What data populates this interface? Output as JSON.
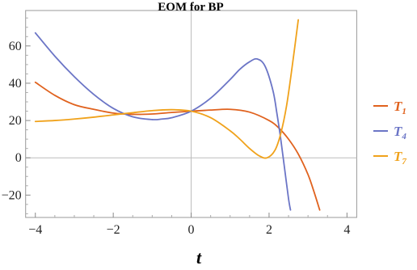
{
  "chart_data": {
    "type": "line",
    "title": "EOM for BP",
    "xlabel": "t",
    "ylabel": "",
    "xlim": [
      -4.25,
      4.25
    ],
    "ylim": [
      -32,
      79
    ],
    "xticks": [
      -4,
      -2,
      0,
      2,
      4
    ],
    "yticks": [
      -20,
      0,
      20,
      40,
      60
    ],
    "grid": false,
    "axes_origin": [
      0,
      0
    ],
    "legend_position": "right",
    "series": [
      {
        "name": "T",
        "subscript": "1",
        "color": "#E0621E",
        "x": [
          -4.0,
          -3.5,
          -3.0,
          -2.5,
          -2.0,
          -1.5,
          -1.0,
          -0.5,
          0.0,
          0.5,
          1.0,
          1.5,
          2.0,
          2.25,
          2.5,
          2.75,
          3.0,
          3.15,
          3.3
        ],
        "y": [
          40.5,
          33.5,
          28.5,
          26.0,
          24.0,
          23.3,
          23.5,
          24.3,
          25.0,
          25.6,
          26.0,
          24.5,
          20.0,
          16.0,
          10.0,
          2.0,
          -9.0,
          -18.0,
          -28.0
        ]
      },
      {
        "name": "T",
        "subscript": "4",
        "color": "#6B75C6",
        "x": [
          -4.0,
          -3.5,
          -3.0,
          -2.5,
          -2.0,
          -1.5,
          -1.0,
          -0.75,
          -0.5,
          0.0,
          0.5,
          1.0,
          1.25,
          1.5,
          1.7,
          1.9,
          2.1,
          2.2,
          2.3,
          2.4,
          2.5,
          2.55
        ],
        "y": [
          67.0,
          54.5,
          43.5,
          34.0,
          26.5,
          22.0,
          20.5,
          20.8,
          21.5,
          25.0,
          32.0,
          42.0,
          47.5,
          51.5,
          53.0,
          49.0,
          36.0,
          24.0,
          10.0,
          -6.0,
          -22.0,
          -28.0
        ]
      },
      {
        "name": "T",
        "subscript": "7",
        "color": "#F0A21B",
        "x": [
          -4.0,
          -3.5,
          -3.0,
          -2.5,
          -2.0,
          -1.5,
          -1.0,
          -0.5,
          0.0,
          0.5,
          1.0,
          1.25,
          1.5,
          1.75,
          1.95,
          2.15,
          2.3,
          2.45,
          2.6,
          2.75
        ],
        "y": [
          19.5,
          20.0,
          20.8,
          21.8,
          23.0,
          24.2,
          25.3,
          25.8,
          25.0,
          21.5,
          14.5,
          10.0,
          5.0,
          1.0,
          0.0,
          4.0,
          13.0,
          28.0,
          50.0,
          74.0
        ]
      }
    ]
  }
}
